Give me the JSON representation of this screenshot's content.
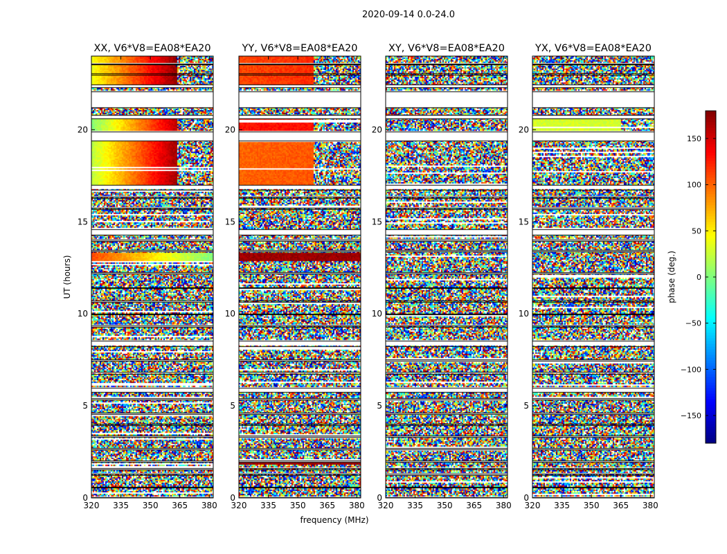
{
  "figure": {
    "suptitle": "2020-09-14 0.0-24.0"
  },
  "colors": {
    "colormap": "jet",
    "background": "#ffffff",
    "axes_edge": "#000000"
  },
  "chart_data": {
    "type": "heatmap",
    "xlabel": "frequency (MHz)",
    "ylabel": "UT (hours)",
    "xlim": [
      320,
      382
    ],
    "ylim": [
      0,
      24
    ],
    "xticks": [
      320,
      335,
      350,
      365,
      380
    ],
    "yticks": [
      0,
      5,
      10,
      15,
      20
    ],
    "colorbar": {
      "label": "phase (deg.)",
      "range": [
        -180,
        180
      ],
      "ticks": [
        -150,
        -100,
        -50,
        0,
        50,
        100,
        150
      ],
      "tick_labels": [
        "−150",
        "−100",
        "−50",
        "0",
        "50",
        "100",
        "150"
      ]
    },
    "panels": [
      {
        "title": "XX, V6*V8=EA08*EA20",
        "polarization": "XX"
      },
      {
        "title": "YY, V6*V8=EA08*EA20",
        "polarization": "YY"
      },
      {
        "title": "XY, V6*V8=EA08*EA20",
        "polarization": "XY"
      },
      {
        "title": "YX, V6*V8=EA08*EA20",
        "polarization": "YX"
      }
    ],
    "coherent_phase_segments": [
      {
        "panel": "XX",
        "ut_range": [
          22.3,
          24.0
        ],
        "freq_range": [
          320,
          364
        ],
        "phase_start": 40,
        "phase_end": 175
      },
      {
        "panel": "XX",
        "ut_range": [
          19.9,
          20.6
        ],
        "freq_range": [
          320,
          364
        ],
        "phase_start": 0,
        "phase_end": 160
      },
      {
        "panel": "XX",
        "ut_range": [
          17.0,
          19.4
        ],
        "freq_range": [
          320,
          364
        ],
        "phase_start": 20,
        "phase_end": 170
      },
      {
        "panel": "XX",
        "ut_range": [
          12.9,
          13.3
        ],
        "freq_range": [
          320,
          382
        ],
        "phase_start": 110,
        "phase_end": 0
      },
      {
        "panel": "YY",
        "ut_range": [
          22.3,
          24.0
        ],
        "freq_range": [
          320,
          358
        ],
        "phase_start": 110,
        "phase_end": 120
      },
      {
        "panel": "YY",
        "ut_range": [
          19.9,
          20.6
        ],
        "freq_range": [
          320,
          358
        ],
        "phase_start": 130,
        "phase_end": 130
      },
      {
        "panel": "YY",
        "ut_range": [
          17.0,
          19.4
        ],
        "freq_range": [
          320,
          358
        ],
        "phase_start": 100,
        "phase_end": 105
      },
      {
        "panel": "YY",
        "ut_range": [
          12.9,
          13.3
        ],
        "freq_range": [
          320,
          382
        ],
        "phase_start": 170,
        "phase_end": 170
      },
      {
        "panel": "YY",
        "ut_range": [
          1.8,
          2.0
        ],
        "freq_range": [
          320,
          382
        ],
        "phase_start": 170,
        "phase_end": 170
      },
      {
        "panel": "YX",
        "ut_range": [
          19.9,
          20.6
        ],
        "freq_range": [
          320,
          365
        ],
        "phase_start": 30,
        "phase_end": 30
      }
    ],
    "flagged_ut_gaps": [
      [
        0.0,
        0.05
      ],
      [
        0.55,
        0.62
      ],
      [
        1.25,
        1.32
      ],
      [
        1.55,
        1.62
      ],
      [
        1.95,
        2.05
      ],
      [
        2.65,
        2.72
      ],
      [
        3.3,
        3.38
      ],
      [
        3.95,
        4.02
      ],
      [
        4.55,
        4.62
      ],
      [
        5.35,
        5.42
      ],
      [
        5.75,
        6.0
      ],
      [
        6.75,
        6.85
      ],
      [
        7.45,
        7.52
      ],
      [
        8.25,
        8.55
      ],
      [
        9.3,
        9.38
      ],
      [
        9.95,
        10.02
      ],
      [
        10.65,
        10.72
      ],
      [
        11.4,
        11.45
      ],
      [
        12.2,
        12.27
      ],
      [
        13.4,
        13.48
      ],
      [
        13.95,
        14.05
      ],
      [
        14.3,
        14.6
      ],
      [
        15.7,
        15.78
      ],
      [
        16.3,
        16.38
      ],
      [
        16.75,
        17.0
      ],
      [
        19.4,
        19.9
      ],
      [
        20.6,
        20.8
      ],
      [
        21.2,
        22.1
      ],
      [
        22.3,
        22.45
      ],
      [
        23.0,
        23.05
      ],
      [
        23.55,
        23.6
      ]
    ]
  }
}
